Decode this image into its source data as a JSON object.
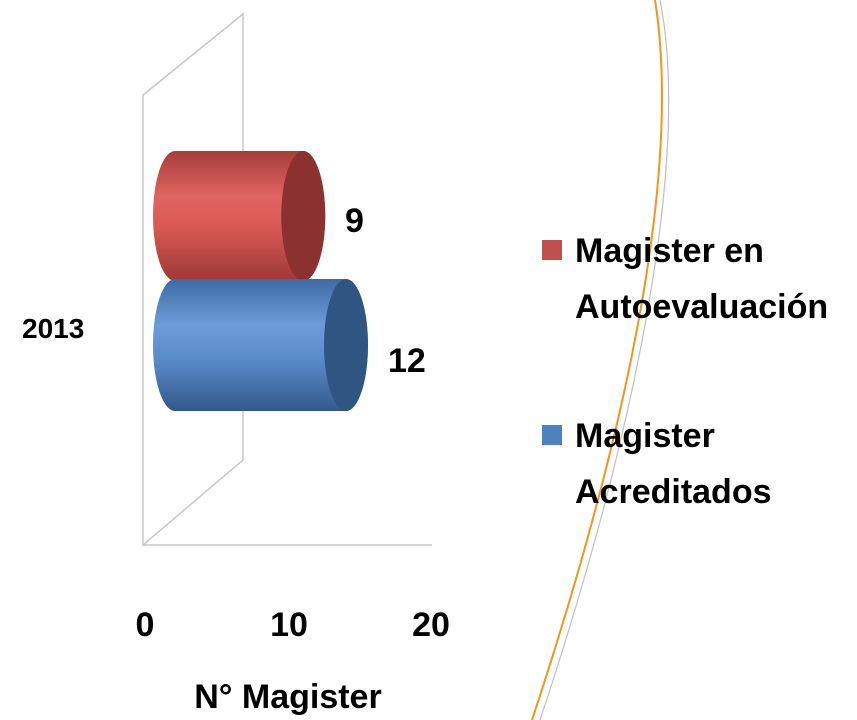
{
  "chart_data": {
    "type": "bar",
    "orientation": "horizontal",
    "style": "3d-cylinder",
    "categories": [
      "2013"
    ],
    "series": [
      {
        "name": "Magister en Autoevaluación",
        "values": [
          9
        ],
        "color": "#C0504D"
      },
      {
        "name": "Magister Acreditados",
        "values": [
          12
        ],
        "color": "#4F81BD"
      }
    ],
    "xlabel": "N° Magister",
    "xlim": [
      0,
      20
    ],
    "xticks": [
      "0",
      "10",
      "20"
    ],
    "data_labels": [
      "9",
      "12"
    ],
    "legend": {
      "position": "right",
      "items": [
        {
          "lines": [
            "Magister en",
            "Autoevaluación"
          ],
          "color": "#C0504D"
        },
        {
          "lines": [
            "Magister",
            "Acreditados"
          ],
          "color": "#4F81BD"
        }
      ]
    },
    "grid": false
  }
}
